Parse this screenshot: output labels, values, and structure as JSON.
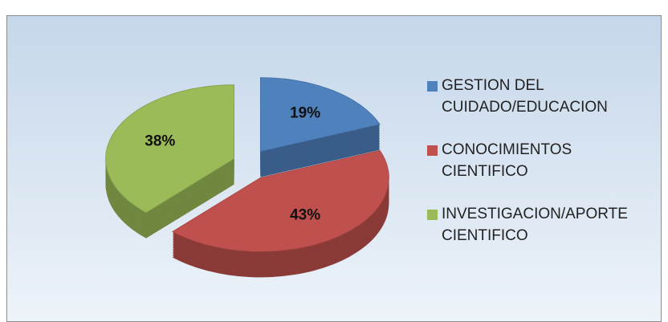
{
  "chart_data": {
    "type": "pie",
    "categories": [
      "GESTION DEL CUIDADO/EDUCACION",
      "CONOCIMIENTOS CIENTIFICO",
      "INVESTIGACION/APORTE CIENTIFICO"
    ],
    "values": [
      19,
      43,
      38
    ],
    "value_labels": [
      "19%",
      "43%",
      "38%"
    ],
    "colors": [
      "#4f81bd",
      "#c0504d",
      "#9bbb59"
    ]
  }
}
